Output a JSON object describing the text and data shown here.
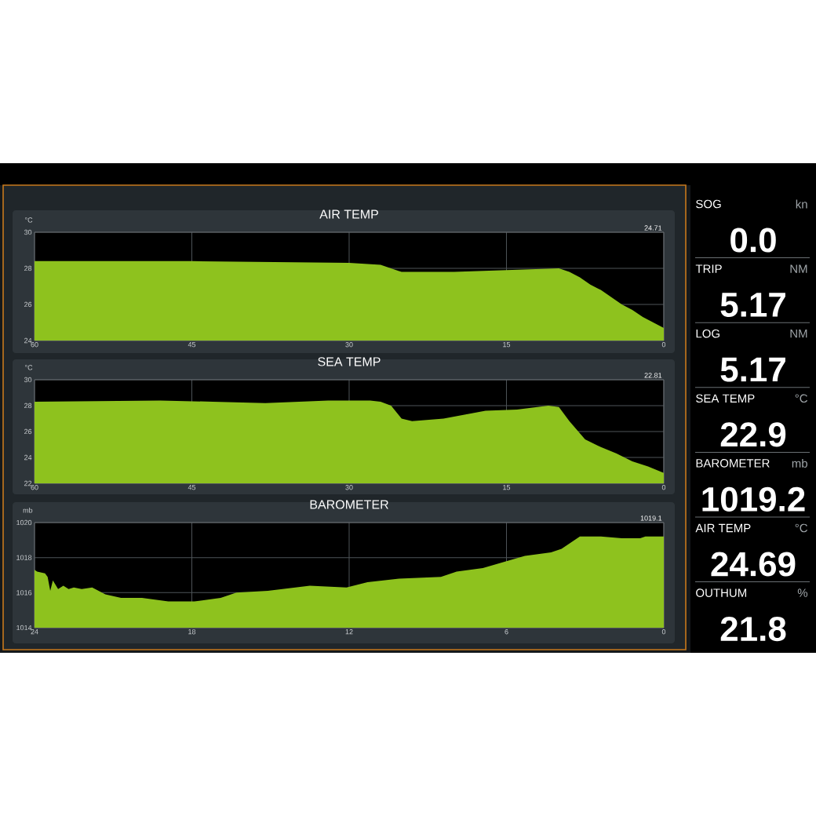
{
  "chart_data": [
    {
      "type": "area",
      "title": "AIR TEMP",
      "ylabel": "°C",
      "annotations": [
        "24.71"
      ],
      "color": "#8ec21e",
      "x": [
        60,
        45,
        30,
        27,
        25,
        24,
        20,
        15,
        10,
        9,
        8,
        7,
        6,
        5,
        4,
        3,
        2,
        1,
        0
      ],
      "values": [
        28.4,
        28.4,
        28.3,
        28.2,
        27.8,
        27.8,
        27.8,
        27.9,
        28.0,
        27.8,
        27.5,
        27.1,
        26.8,
        26.4,
        26.0,
        25.7,
        25.3,
        25.0,
        24.7
      ],
      "xlim": [
        60,
        0
      ],
      "xticks": [
        60,
        45,
        30,
        15,
        0
      ],
      "ylim": [
        24,
        30
      ],
      "yticks": [
        24,
        26,
        28,
        30
      ],
      "grid": true
    },
    {
      "type": "area",
      "title": "SEA TEMP",
      "ylabel": "°C",
      "annotations": [
        "22.81"
      ],
      "color": "#8ec21e",
      "x": [
        60,
        48,
        43,
        38,
        32,
        28,
        27,
        26,
        25,
        24,
        21,
        17,
        14,
        11,
        10,
        9,
        7.5,
        6,
        4.5,
        3,
        1.5,
        0
      ],
      "values": [
        28.3,
        28.4,
        28.3,
        28.2,
        28.4,
        28.4,
        28.3,
        28.0,
        27.0,
        26.8,
        27.0,
        27.6,
        27.7,
        28.0,
        27.9,
        26.8,
        25.4,
        24.8,
        24.3,
        23.7,
        23.3,
        22.8
      ],
      "xlim": [
        60,
        0
      ],
      "xticks": [
        60,
        45,
        30,
        15,
        0
      ],
      "ylim": [
        22,
        30
      ],
      "yticks": [
        22,
        24,
        26,
        28,
        30
      ],
      "grid": true
    },
    {
      "type": "area",
      "title": "BAROMETER",
      "ylabel": "mb",
      "annotations": [
        "1019.1"
      ],
      "color": "#8ec21e",
      "x": [
        24,
        23.9,
        23.6,
        23.5,
        23.4,
        23.3,
        23.1,
        22.9,
        22.7,
        22.5,
        22.2,
        21.8,
        21.3,
        20.7,
        19.9,
        18.9,
        17.9,
        16.9,
        16.3,
        15.1,
        13.5,
        12.1,
        11.3,
        10.1,
        8.5,
        7.9,
        6.9,
        6.0,
        5.3,
        4.3,
        3.9,
        3.2,
        2.4,
        1.6,
        0.9,
        0.7,
        0
      ],
      "values": [
        1017.3,
        1017.2,
        1017.1,
        1016.9,
        1016.1,
        1016.7,
        1016.2,
        1016.4,
        1016.2,
        1016.3,
        1016.2,
        1016.3,
        1015.9,
        1015.7,
        1015.7,
        1015.5,
        1015.5,
        1015.7,
        1016.0,
        1016.1,
        1016.4,
        1016.3,
        1016.6,
        1016.8,
        1016.9,
        1017.2,
        1017.4,
        1017.8,
        1018.1,
        1018.3,
        1018.5,
        1019.2,
        1019.2,
        1019.1,
        1019.1,
        1019.2,
        1019.2
      ],
      "xlim": [
        24,
        0
      ],
      "xticks": [
        24,
        18,
        12,
        6,
        0
      ],
      "ylim": [
        1014,
        1020
      ],
      "yticks": [
        1014,
        1016,
        1018,
        1020
      ],
      "grid": true
    },
    {
      "type": "other",
      "annotations": [
        "SOG",
        "kn",
        "0.0",
        "TRIP",
        "NM",
        "5.17",
        "LOG",
        "NM",
        "5.17",
        "SEA TEMP",
        "°C",
        "22.9",
        "BAROMETER",
        "mb",
        "1019.2",
        "AIR TEMP",
        "°C",
        "24.69",
        "OUTHUM",
        "%",
        "21.8"
      ]
    }
  ]
}
